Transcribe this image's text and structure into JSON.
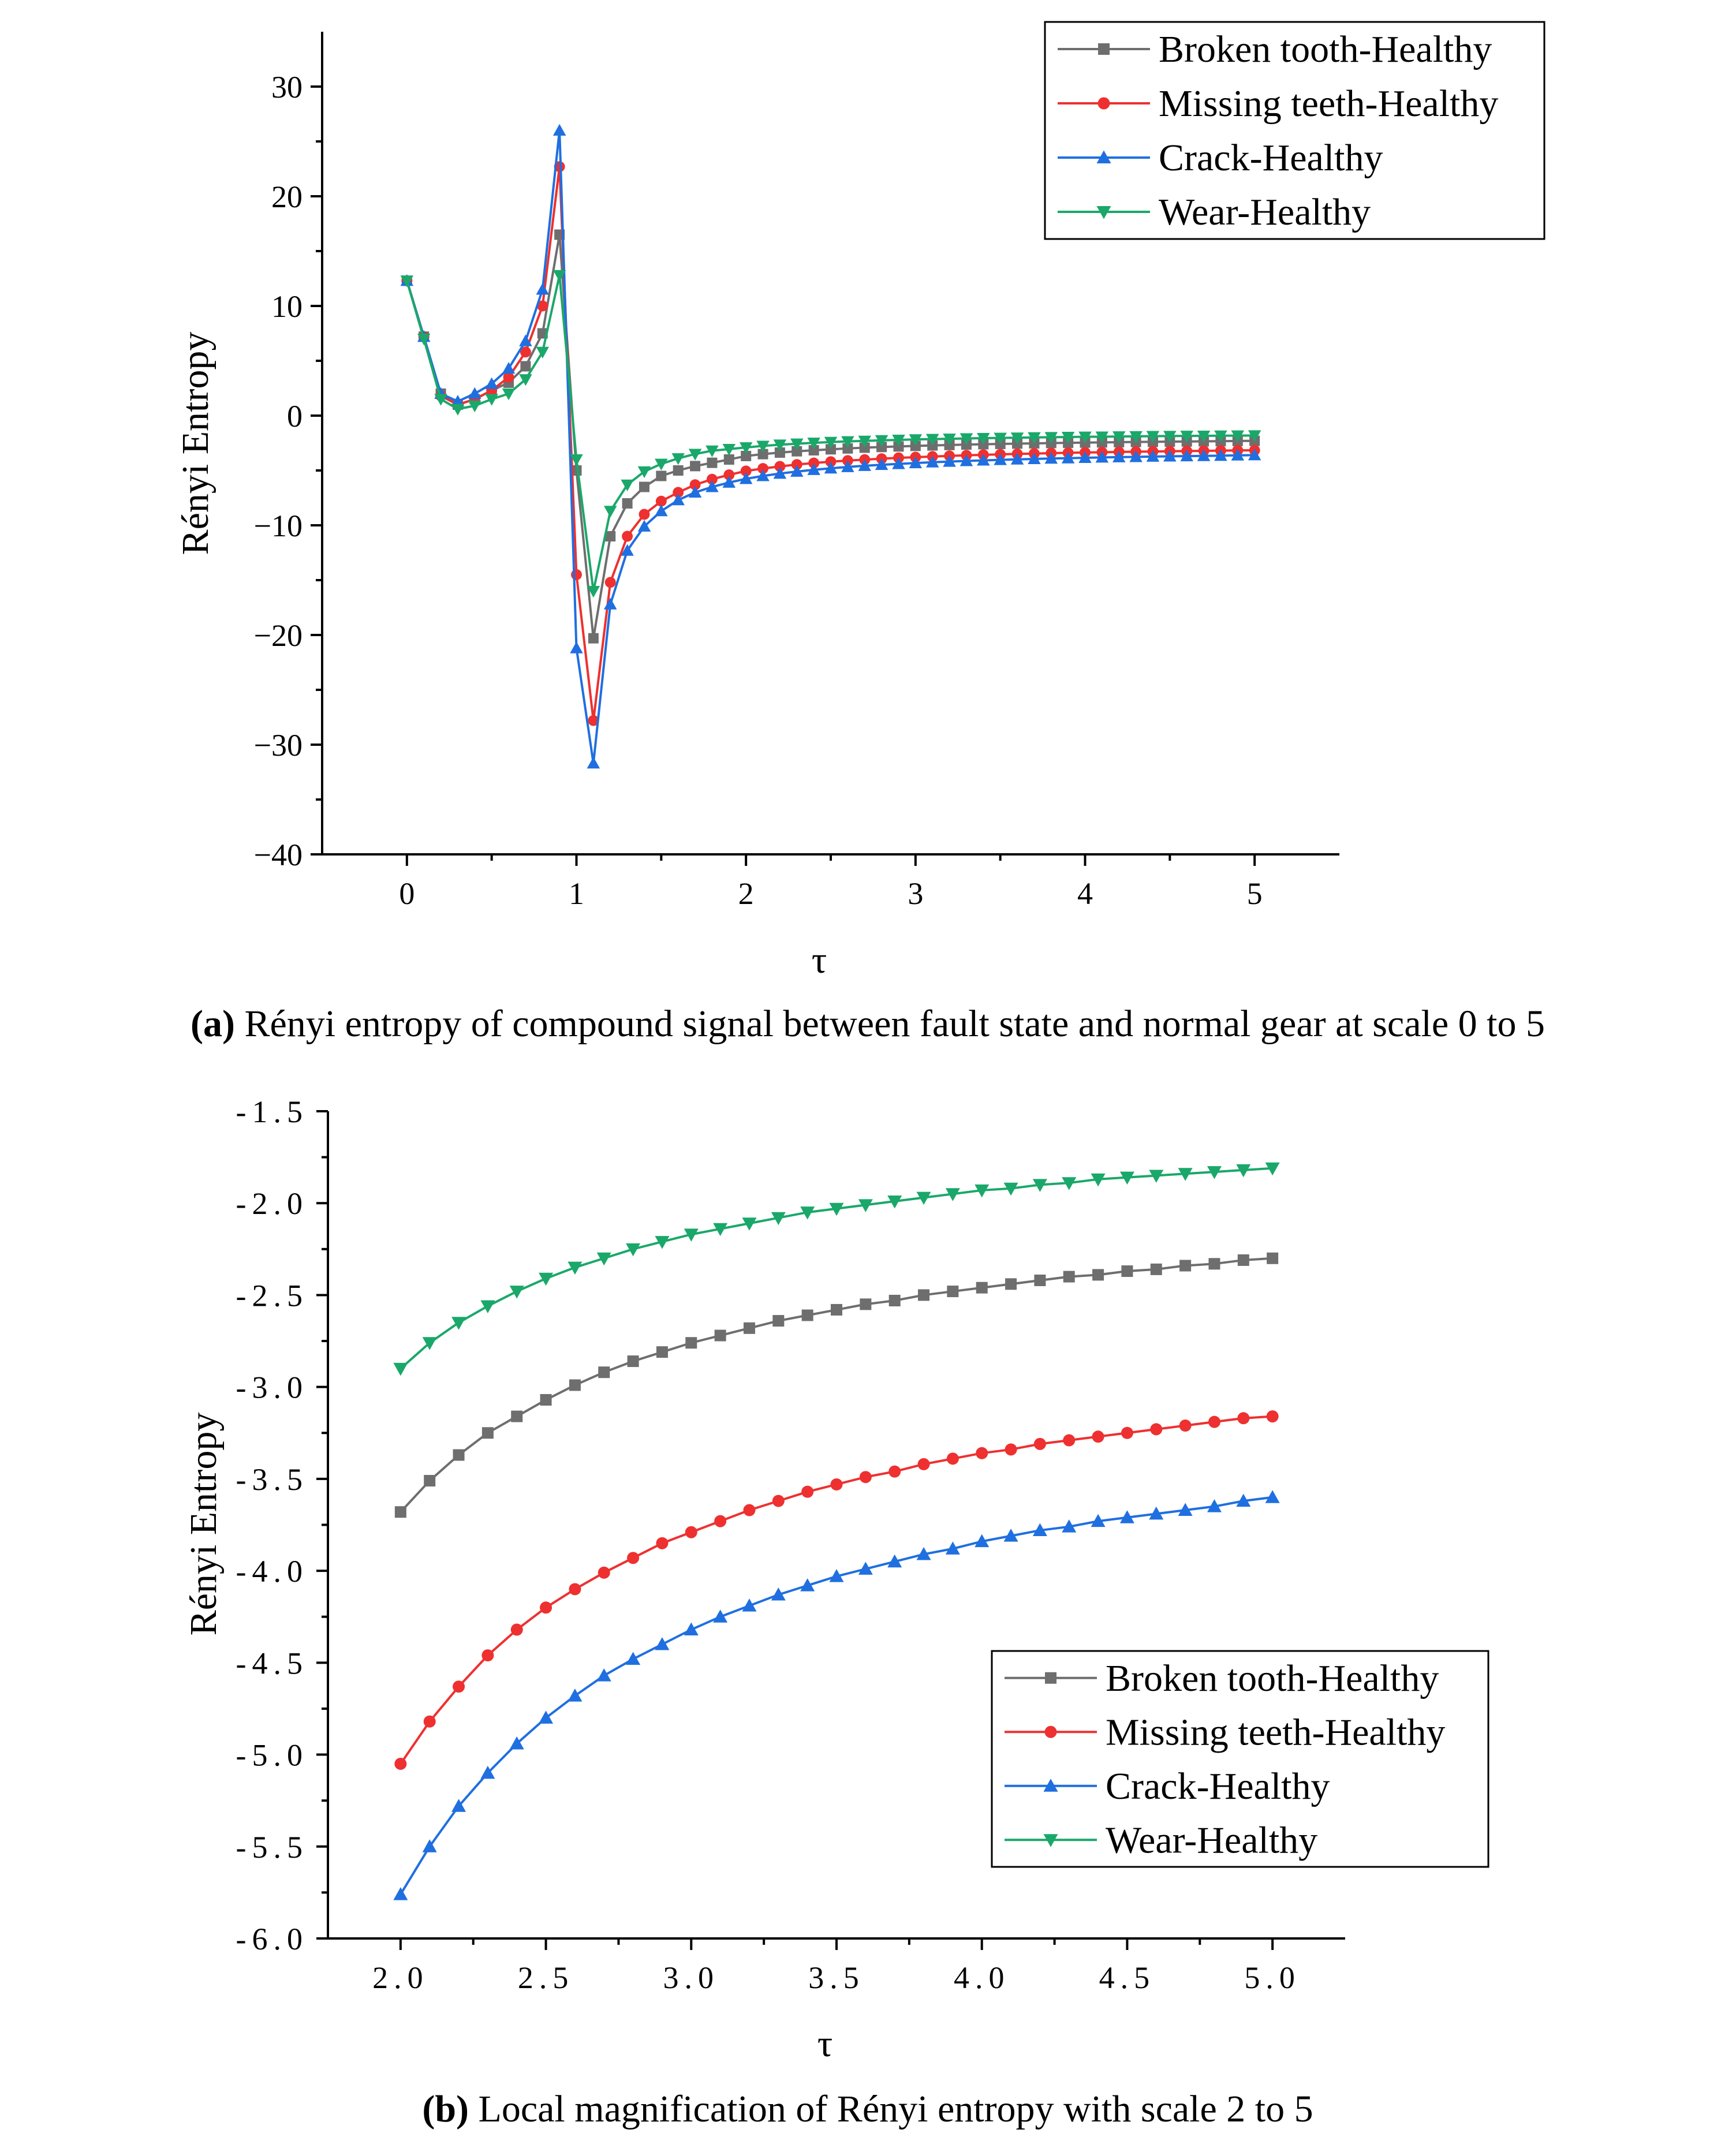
{
  "colors": {
    "broken": "#6e6e6e",
    "missing": "#ee3030",
    "crack": "#1f6fe0",
    "wear": "#1aa86a"
  },
  "chart_data": [
    {
      "id": "a",
      "type": "line",
      "xlabel": "τ",
      "ylabel": "Rényi Entropy",
      "xlim": [
        -0.5,
        5.5
      ],
      "ylim": [
        -40,
        35
      ],
      "xticks": [
        0,
        1,
        2,
        3,
        4,
        5
      ],
      "xtick_labels": [
        "0",
        "1",
        "2",
        "3",
        "4",
        "5"
      ],
      "yticks": [
        -40,
        -30,
        -20,
        -10,
        0,
        10,
        20,
        30
      ],
      "ytick_labels": [
        "−40",
        "−30",
        "−20",
        "−10",
        "0",
        "10",
        "20",
        "30"
      ],
      "legend_position": "top-right",
      "caption_label": "(a)",
      "caption_text": " Rényi entropy of compound signal between fault state and normal gear at scale 0 to 5",
      "series": [
        {
          "name": "Broken tooth-Healthy",
          "key": "broken",
          "marker": "square",
          "values": [
            12.3,
            7.2,
            2.0,
            1.0,
            1.5,
            2.3,
            3.0,
            4.5,
            7.5,
            16.5,
            -5.0,
            -20.3,
            -11.0,
            -8.0,
            -6.5,
            -5.5,
            -5.0,
            -4.6,
            -4.3,
            -4.0,
            -3.68,
            -3.51,
            -3.37,
            -3.25,
            -3.16,
            -3.07,
            -2.99,
            -2.92,
            -2.86,
            -2.81,
            -2.76,
            -2.72,
            -2.68,
            -2.64,
            -2.61,
            -2.58,
            -2.55,
            -2.53,
            -2.5,
            -2.48,
            -2.46,
            -2.44,
            -2.42,
            -2.4,
            -2.39,
            -2.37,
            -2.36,
            -2.34,
            -2.33,
            -2.31,
            -2.3
          ]
        },
        {
          "name": "Missing teeth-Healthy",
          "key": "missing",
          "marker": "circle",
          "values": [
            12.3,
            7.2,
            1.8,
            1.0,
            1.5,
            2.3,
            3.5,
            5.8,
            10.0,
            22.7,
            -14.5,
            -27.8,
            -15.2,
            -11.0,
            -9.0,
            -7.8,
            -7.0,
            -6.3,
            -5.8,
            -5.4,
            -5.05,
            -4.82,
            -4.63,
            -4.46,
            -4.32,
            -4.2,
            -4.1,
            -4.01,
            -3.93,
            -3.85,
            -3.79,
            -3.73,
            -3.67,
            -3.62,
            -3.57,
            -3.53,
            -3.49,
            -3.46,
            -3.42,
            -3.39,
            -3.36,
            -3.34,
            -3.31,
            -3.29,
            -3.27,
            -3.25,
            -3.23,
            -3.21,
            -3.19,
            -3.17,
            -3.16
          ]
        },
        {
          "name": "Crack-Healthy",
          "key": "crack",
          "marker": "triangle-up",
          "values": [
            12.3,
            7.2,
            2.0,
            1.3,
            2.0,
            2.9,
            4.3,
            6.8,
            11.5,
            26.0,
            -21.2,
            -31.7,
            -17.2,
            -12.3,
            -10.1,
            -8.7,
            -7.7,
            -7.0,
            -6.5,
            -6.1,
            -5.76,
            -5.5,
            -5.28,
            -5.1,
            -4.94,
            -4.8,
            -4.68,
            -4.57,
            -4.48,
            -4.4,
            -4.32,
            -4.25,
            -4.19,
            -4.13,
            -4.08,
            -4.03,
            -3.99,
            -3.95,
            -3.91,
            -3.88,
            -3.84,
            -3.81,
            -3.78,
            -3.76,
            -3.73,
            -3.71,
            -3.69,
            -3.67,
            -3.65,
            -3.62,
            -3.6
          ]
        },
        {
          "name": "Wear-Healthy",
          "key": "wear",
          "marker": "triangle-down",
          "values": [
            12.3,
            7.0,
            1.5,
            0.6,
            0.9,
            1.5,
            2.0,
            3.3,
            5.8,
            12.8,
            -4.0,
            -16.0,
            -8.7,
            -6.3,
            -5.1,
            -4.4,
            -3.9,
            -3.5,
            -3.2,
            -3.05,
            -2.9,
            -2.76,
            -2.65,
            -2.56,
            -2.48,
            -2.41,
            -2.35,
            -2.3,
            -2.25,
            -2.21,
            -2.17,
            -2.14,
            -2.11,
            -2.08,
            -2.05,
            -2.03,
            -2.01,
            -1.99,
            -1.97,
            -1.95,
            -1.93,
            -1.92,
            -1.9,
            -1.89,
            -1.87,
            -1.86,
            -1.85,
            -1.84,
            -1.83,
            -1.82,
            -1.81
          ]
        }
      ]
    },
    {
      "id": "b",
      "type": "line",
      "xlabel": "τ",
      "ylabel": "Rényi Entropy",
      "xlim": [
        1.75,
        5.25
      ],
      "ylim": [
        -6.0,
        -1.5
      ],
      "xticks": [
        2.0,
        2.5,
        3.0,
        3.5,
        4.0,
        4.5,
        5.0
      ],
      "xtick_labels": [
        "2.0",
        "2.5",
        "3.0",
        "3.5",
        "4.0",
        "4.5",
        "5.0"
      ],
      "yticks": [
        -6.0,
        -5.5,
        -5.0,
        -4.5,
        -4.0,
        -3.5,
        -3.0,
        -2.5,
        -2.0,
        -1.5
      ],
      "ytick_labels": [
        "-6.0",
        "-5.5",
        "-5.0",
        "-4.5",
        "-4.0",
        "-3.5",
        "-3.0",
        "-2.5",
        "-2.0",
        "-1.5"
      ],
      "legend_position": "bottom-right",
      "caption_label": "(b)",
      "caption_text": " Local magnification of Rényi entropy with scale 2 to 5",
      "series": [
        {
          "name": "Broken tooth-Healthy",
          "key": "broken",
          "marker": "square",
          "values": [
            -3.68,
            -3.51,
            -3.37,
            -3.25,
            -3.16,
            -3.07,
            -2.99,
            -2.92,
            -2.86,
            -2.81,
            -2.76,
            -2.72,
            -2.68,
            -2.64,
            -2.61,
            -2.58,
            -2.55,
            -2.53,
            -2.5,
            -2.48,
            -2.46,
            -2.44,
            -2.42,
            -2.4,
            -2.39,
            -2.37,
            -2.36,
            -2.34,
            -2.33,
            -2.31,
            -2.3
          ]
        },
        {
          "name": "Missing teeth-Healthy",
          "key": "missing",
          "marker": "circle",
          "values": [
            -5.05,
            -4.82,
            -4.63,
            -4.46,
            -4.32,
            -4.2,
            -4.1,
            -4.01,
            -3.93,
            -3.85,
            -3.79,
            -3.73,
            -3.67,
            -3.62,
            -3.57,
            -3.53,
            -3.49,
            -3.46,
            -3.42,
            -3.39,
            -3.36,
            -3.34,
            -3.31,
            -3.29,
            -3.27,
            -3.25,
            -3.23,
            -3.21,
            -3.19,
            -3.17,
            -3.16
          ]
        },
        {
          "name": "Crack-Healthy",
          "key": "crack",
          "marker": "triangle-up",
          "values": [
            -5.76,
            -5.5,
            -5.28,
            -5.1,
            -4.94,
            -4.8,
            -4.68,
            -4.57,
            -4.48,
            -4.4,
            -4.32,
            -4.25,
            -4.19,
            -4.13,
            -4.08,
            -4.03,
            -3.99,
            -3.95,
            -3.91,
            -3.88,
            -3.84,
            -3.81,
            -3.78,
            -3.76,
            -3.73,
            -3.71,
            -3.69,
            -3.67,
            -3.65,
            -3.62,
            -3.6
          ]
        },
        {
          "name": "Wear-Healthy",
          "key": "wear",
          "marker": "triangle-down",
          "values": [
            -2.9,
            -2.76,
            -2.65,
            -2.56,
            -2.48,
            -2.41,
            -2.35,
            -2.3,
            -2.25,
            -2.21,
            -2.17,
            -2.14,
            -2.11,
            -2.08,
            -2.05,
            -2.03,
            -2.01,
            -1.99,
            -1.97,
            -1.95,
            -1.93,
            -1.92,
            -1.9,
            -1.89,
            -1.87,
            -1.86,
            -1.85,
            -1.84,
            -1.83,
            -1.82,
            -1.81
          ]
        }
      ]
    }
  ]
}
